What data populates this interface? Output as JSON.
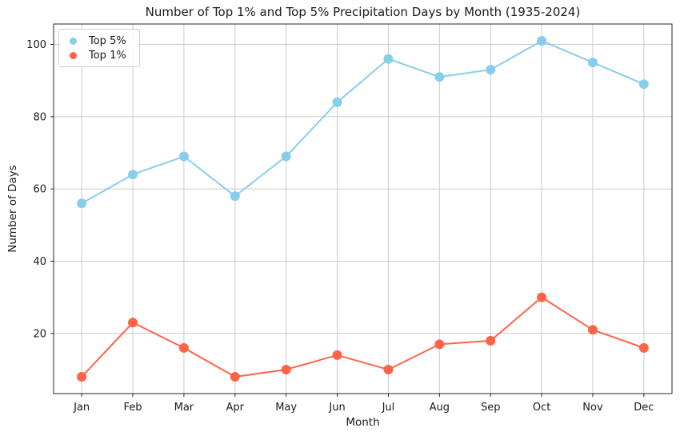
{
  "figure": {
    "background": "#ffffff",
    "text_color": "#1a1a1a",
    "grid_color": "#cccccc",
    "spine_color": "#262626"
  },
  "chart_data": {
    "type": "line",
    "title": "Number of Top 1% and Top 5% Precipitation Days by Month (1935-2024)",
    "xlabel": "Month",
    "ylabel": "Number of Days",
    "categories": [
      "Jan",
      "Feb",
      "Mar",
      "Apr",
      "May",
      "Jun",
      "Jul",
      "Aug",
      "Sep",
      "Oct",
      "Nov",
      "Dec"
    ],
    "series": [
      {
        "name": "Top 5%",
        "color": "#87CEEB",
        "values": [
          56,
          64,
          69,
          58,
          69,
          84,
          96,
          91,
          93,
          101,
          95,
          89
        ]
      },
      {
        "name": "Top 1%",
        "color": "#FF6347",
        "values": [
          8,
          23,
          16,
          8,
          10,
          14,
          10,
          17,
          18,
          30,
          21,
          16
        ]
      }
    ],
    "yticks": [
      20,
      40,
      60,
      80,
      100
    ],
    "ylim": [
      3.35,
      105.65
    ],
    "grid": true,
    "legend_position": "upper left",
    "marker": "circle"
  }
}
